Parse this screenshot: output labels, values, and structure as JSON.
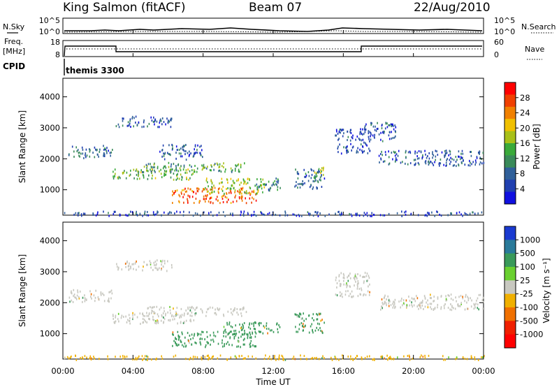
{
  "header": {
    "station": "King Salmon (fitACF)",
    "beam": "Beam 07",
    "date": "22/Aug/2010"
  },
  "aux_panels": {
    "nsky_label": "N.Sky",
    "nsearch_label": "N.Search",
    "freq_label_line1": "Freq.",
    "freq_label_line2": "[MHz]",
    "nave_label": "Nave",
    "cpid_label": "CPID",
    "cpid_value": "themis 3300",
    "nsky_ticks": [
      "10^5",
      "10^0"
    ],
    "nsearch_ticks": [
      "10^5",
      "10^0"
    ],
    "freq_ticks": [
      "18",
      "8"
    ],
    "nave_ticks": [
      "60",
      "0"
    ]
  },
  "chart_data": [
    {
      "type": "heatmap",
      "panel": "power",
      "xlabel": "",
      "ylabel": "Slant Range [km]",
      "xlim": [
        0,
        24
      ],
      "ylim": [
        180,
        4600
      ],
      "yticks": [
        1000,
        2000,
        3000,
        4000
      ],
      "colorbar": {
        "label": "Power [dB]",
        "ticks": [
          4,
          8,
          12,
          16,
          20,
          24,
          28
        ],
        "range": [
          0,
          32
        ],
        "colors": [
          "#1010e0",
          "#2040b0",
          "#30609a",
          "#3a8a5a",
          "#3aaa3a",
          "#a8c018",
          "#f0c000",
          "#f08000",
          "#f04000",
          "#ff0000"
        ]
      },
      "echo_regions": [
        {
          "t0": 0.3,
          "t1": 2.8,
          "r0": 2050,
          "r1": 2450,
          "level": 8
        },
        {
          "t0": 3.0,
          "t1": 6.2,
          "r0": 3050,
          "r1": 3400,
          "level": 6
        },
        {
          "t0": 2.8,
          "t1": 7.5,
          "r0": 1350,
          "r1": 1700,
          "level": 15
        },
        {
          "t0": 4.5,
          "t1": 10.5,
          "r0": 1600,
          "r1": 1900,
          "level": 13
        },
        {
          "t0": 5.5,
          "t1": 8.0,
          "r0": 2000,
          "r1": 2500,
          "level": 7
        },
        {
          "t0": 6.2,
          "t1": 11.0,
          "r0": 600,
          "r1": 1100,
          "level": 26
        },
        {
          "t0": 8.0,
          "t1": 11.5,
          "r0": 900,
          "r1": 1400,
          "level": 18
        },
        {
          "t0": 11.0,
          "t1": 12.4,
          "r0": 1000,
          "r1": 1400,
          "level": 10
        },
        {
          "t0": 13.2,
          "t1": 14.9,
          "r0": 1050,
          "r1": 1700,
          "level": 8
        },
        {
          "t0": 14.3,
          "t1": 15.0,
          "r0": 1400,
          "r1": 1750,
          "level": 17
        },
        {
          "t0": 15.5,
          "t1": 17.5,
          "r0": 2200,
          "r1": 3000,
          "level": 5
        },
        {
          "t0": 17.0,
          "t1": 19.0,
          "r0": 2600,
          "r1": 3200,
          "level": 6
        },
        {
          "t0": 18.0,
          "t1": 24.0,
          "r0": 1800,
          "r1": 2300,
          "level": 7
        },
        {
          "t0": 0.0,
          "t1": 24.0,
          "r0": 180,
          "r1": 330,
          "level": 5
        }
      ]
    },
    {
      "type": "heatmap",
      "panel": "velocity",
      "xlabel": "Time UT",
      "ylabel": "Slant Range [km]",
      "xlim": [
        0,
        24
      ],
      "ylim": [
        180,
        4600
      ],
      "xticks": [
        "00:00",
        "04:00",
        "08:00",
        "12:00",
        "16:00",
        "20:00",
        "00:00"
      ],
      "yticks": [
        1000,
        2000,
        3000,
        4000
      ],
      "colorbar": {
        "label": "Velocity [m s⁻¹]",
        "ticks": [
          1000,
          500,
          100,
          25,
          -25,
          -100,
          -500,
          -1000
        ],
        "colors": [
          "#1a3ad0",
          "#2a7a9a",
          "#3a9a5a",
          "#6ad030",
          "#c8c8c0",
          "#f0b000",
          "#f07000",
          "#f02000",
          "#ff0000"
        ]
      },
      "echo_regions": [
        {
          "t0": 0.3,
          "t1": 2.8,
          "r0": 2050,
          "r1": 2450,
          "level": 0
        },
        {
          "t0": 3.0,
          "t1": 6.2,
          "r0": 3050,
          "r1": 3400,
          "level": 0
        },
        {
          "t0": 2.8,
          "t1": 7.5,
          "r0": 1350,
          "r1": 1700,
          "level": 0
        },
        {
          "t0": 4.5,
          "t1": 10.5,
          "r0": 1600,
          "r1": 1900,
          "level": 0
        },
        {
          "t0": 6.2,
          "t1": 11.0,
          "r0": 600,
          "r1": 1100,
          "level": 150
        },
        {
          "t0": 9.0,
          "t1": 12.4,
          "r0": 1000,
          "r1": 1400,
          "level": 150
        },
        {
          "t0": 13.2,
          "t1": 14.9,
          "r0": 1050,
          "r1": 1700,
          "level": 150
        },
        {
          "t0": 15.5,
          "t1": 17.5,
          "r0": 2200,
          "r1": 3000,
          "level": 0
        },
        {
          "t0": 18.0,
          "t1": 24.0,
          "r0": 1800,
          "r1": 2300,
          "level": 0
        },
        {
          "t0": 0.0,
          "t1": 24.0,
          "r0": 180,
          "r1": 330,
          "level": -60
        }
      ]
    }
  ],
  "palette": {
    "frame": "#000000",
    "background": "#ffffff"
  }
}
